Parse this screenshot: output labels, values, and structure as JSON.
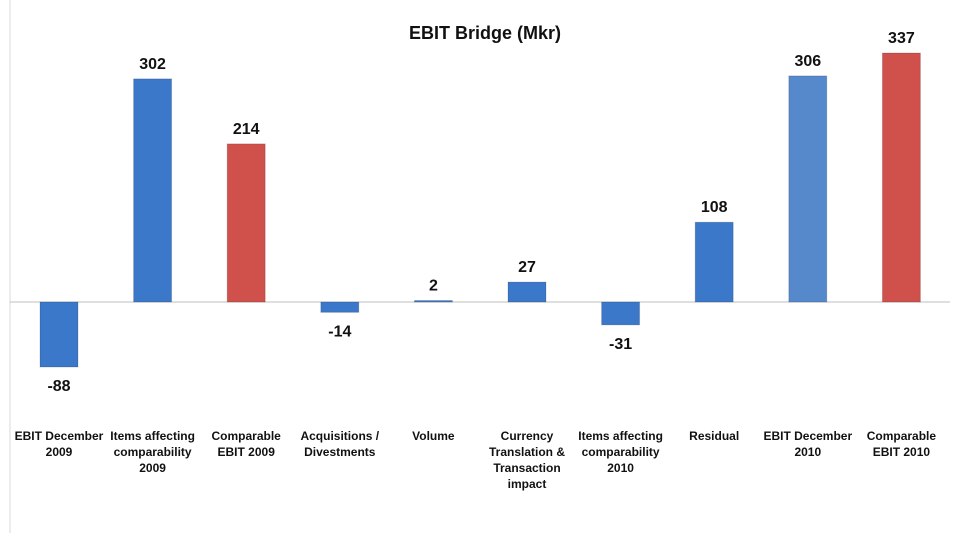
{
  "chart_data": {
    "type": "bar",
    "title": "EBIT Bridge (Mkr)",
    "categories": [
      "EBIT December 2009",
      "Items affecting comparability 2009",
      "Comparable EBIT 2009",
      "Acquisitions / Divestments",
      "Volume",
      "Currency Translation & Transaction impact",
      "Items affecting comparability 2010",
      "Residual",
      "EBIT December 2010",
      "Comparable EBIT 2010"
    ],
    "values": [
      -88,
      302,
      214,
      -14,
      2,
      27,
      -31,
      108,
      306,
      337
    ],
    "colors": [
      "#3b78c9",
      "#3b78c9",
      "#d0504c",
      "#3b78c9",
      "#3b78c9",
      "#3b78c9",
      "#3b78c9",
      "#3b78c9",
      "#5688cc",
      "#d0504c"
    ]
  }
}
